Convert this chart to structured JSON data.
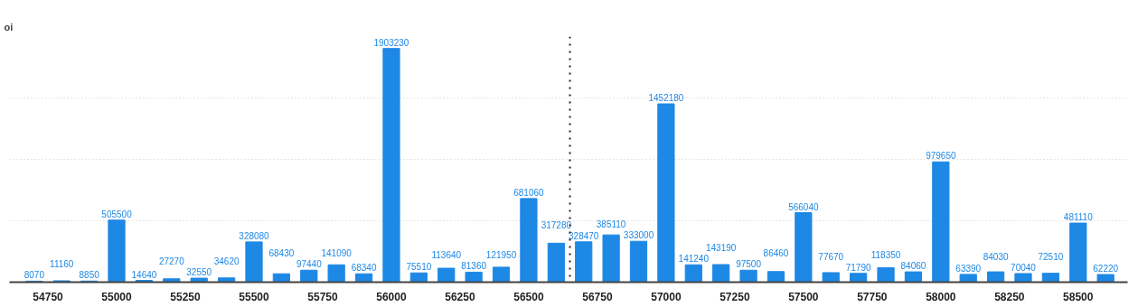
{
  "chart_data": {
    "type": "bar",
    "ylabel": "oi",
    "x": [
      54700,
      54800,
      54900,
      55000,
      55100,
      55200,
      55300,
      55400,
      55500,
      55600,
      55700,
      55800,
      55900,
      56000,
      56100,
      56200,
      56300,
      56400,
      56500,
      56600,
      56700,
      56800,
      56900,
      57000,
      57100,
      57200,
      57300,
      57400,
      57500,
      57600,
      57700,
      57800,
      57900,
      58000,
      58100,
      58200,
      58300,
      58400,
      58500,
      58600
    ],
    "values": [
      8070,
      11160,
      8850,
      505500,
      14640,
      27270,
      32550,
      34620,
      328080,
      68430,
      97440,
      141090,
      68340,
      1903230,
      75510,
      113640,
      81360,
      121950,
      681060,
      317280,
      328470,
      385110,
      333000,
      1452180,
      141240,
      143190,
      97500,
      86460,
      566040,
      77670,
      71790,
      118350,
      84060,
      979650,
      63390,
      84030,
      70040,
      72510,
      481110,
      62220
    ],
    "color": "#1e88e5",
    "data_labels": true,
    "xlim": [
      54610,
      58680
    ],
    "xticks": [
      54750,
      55000,
      55250,
      55500,
      55750,
      56000,
      56250,
      56500,
      56750,
      57000,
      57250,
      57500,
      57750,
      58000,
      58250,
      58500
    ],
    "ylim": [
      0,
      2000000
    ],
    "yticks": [
      {
        "value": 0,
        "label": null
      },
      {
        "value": 500000,
        "label": null
      },
      {
        "value": 1000000,
        "label": null
      },
      {
        "value": 1500000,
        "label": null
      }
    ],
    "tick_labels": "x",
    "grid": "y",
    "ref_lines": [
      {
        "axis": "x",
        "value": 56650,
        "label": null,
        "line_style": "dotted",
        "color": "#222222"
      }
    ]
  }
}
